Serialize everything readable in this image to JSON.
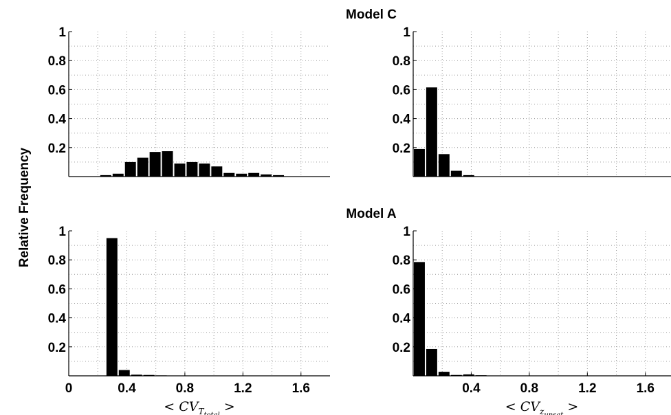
{
  "figure": {
    "ylabel": "Relative Frequency",
    "xlabel_left": {
      "main": "< CV",
      "sub1": "T",
      "sub2": "total",
      "close": " >"
    },
    "xlabel_right": {
      "main": "< CV",
      "sub1": "z",
      "sub2": "unsat",
      "close": " >"
    },
    "bar_color": "#000000",
    "grid_color": "#9a9a9a"
  },
  "chart_data": [
    {
      "type": "bar",
      "title": "Model C",
      "xlim": [
        0,
        1.8
      ],
      "ylim": [
        0,
        1
      ],
      "bin_width": 0.085,
      "x": [
        0.085,
        0.17,
        0.255,
        0.34,
        0.425,
        0.51,
        0.595,
        0.68,
        0.765,
        0.85,
        0.935,
        1.02,
        1.105,
        1.19,
        1.275,
        1.36,
        1.445,
        1.53,
        1.615,
        1.7
      ],
      "values": [
        0,
        0,
        0.01,
        0.02,
        0.1,
        0.13,
        0.17,
        0.175,
        0.09,
        0.1,
        0.09,
        0.07,
        0.025,
        0.02,
        0.025,
        0.015,
        0.01,
        0,
        0,
        0
      ],
      "yticks": [
        0.2,
        0.4,
        0.6,
        0.8,
        1
      ],
      "ytick_labels": [
        "0.2",
        "0.4",
        "0.6",
        "0.8",
        "1"
      ],
      "xticks": [],
      "xtick_labels": [],
      "grid": true
    },
    {
      "type": "bar",
      "title": "",
      "xlim": [
        0,
        1.8
      ],
      "ylim": [
        0,
        1
      ],
      "bin_width": 0.085,
      "x": [
        0.0425,
        0.1275,
        0.2125,
        0.2975,
        0.3825
      ],
      "values": [
        0.19,
        0.615,
        0.155,
        0.04,
        0.01
      ],
      "yticks": [
        0.2,
        0.4,
        0.6,
        0.8,
        1
      ],
      "ytick_labels": [
        "0.2",
        "0.4",
        "0.6",
        "0.8",
        "1"
      ],
      "xticks": [],
      "xtick_labels": [],
      "grid": true
    },
    {
      "type": "bar",
      "title": "Model A",
      "xlim": [
        0,
        1.8
      ],
      "ylim": [
        0,
        1
      ],
      "bin_width": 0.085,
      "x": [
        0.2975,
        0.3825,
        0.4675,
        0.5525,
        0.6375
      ],
      "values": [
        0.95,
        0.04,
        0.008,
        0.006,
        0.003
      ],
      "yticks": [
        0.2,
        0.4,
        0.6,
        0.8,
        1
      ],
      "ytick_labels": [
        "0.2",
        "0.4",
        "0.6",
        "0.8",
        "1"
      ],
      "xticks": [
        0,
        0.4,
        0.8,
        1.2,
        1.6
      ],
      "xtick_labels": [
        "0",
        "0.4",
        "0.8",
        "1.2",
        "1.6"
      ],
      "grid": true
    },
    {
      "type": "bar",
      "title": "",
      "xlim": [
        0,
        1.8
      ],
      "ylim": [
        0,
        1
      ],
      "bin_width": 0.085,
      "x": [
        0.0425,
        0.1275,
        0.2125,
        0.2975,
        0.3825,
        0.4675
      ],
      "values": [
        0.785,
        0.185,
        0.028,
        0.006,
        0.01,
        0.004
      ],
      "yticks": [
        0.2,
        0.4,
        0.6,
        0.8,
        1
      ],
      "ytick_labels": [
        "0.2",
        "0.4",
        "0.6",
        "0.8",
        "1"
      ],
      "xticks": [
        0.4,
        0.8,
        1.2,
        1.6
      ],
      "xtick_labels": [
        "0.4",
        "0.8",
        "1.2",
        "1.6"
      ],
      "grid": true
    }
  ]
}
